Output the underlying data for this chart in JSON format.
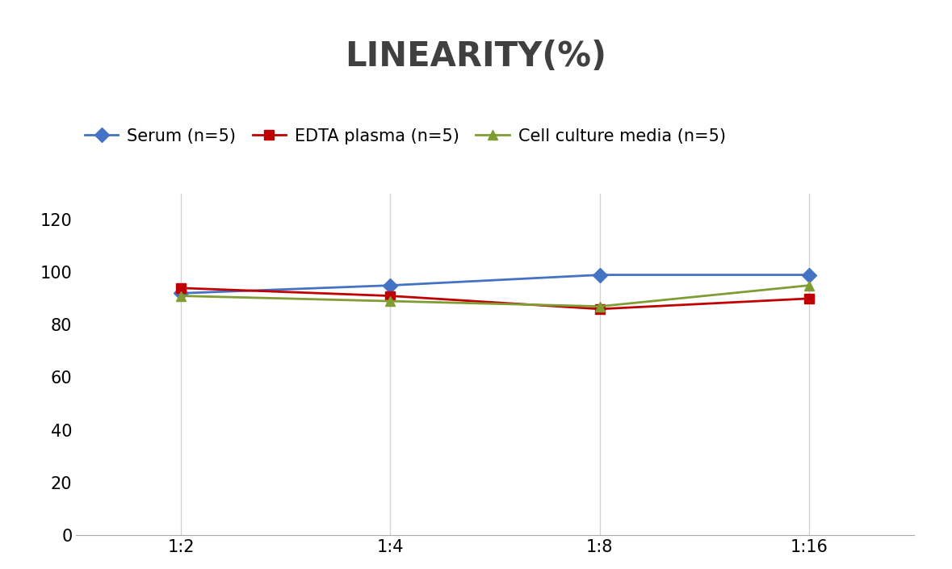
{
  "title": "LINEARITY(%)",
  "x_labels": [
    "1:2",
    "1:4",
    "1:8",
    "1:16"
  ],
  "x_positions": [
    0,
    1,
    2,
    3
  ],
  "series": [
    {
      "label": "Serum (n=5)",
      "values": [
        92,
        95,
        99,
        99
      ],
      "color": "#4472C4",
      "marker": "D",
      "markersize": 9,
      "linewidth": 2
    },
    {
      "label": "EDTA plasma (n=5)",
      "values": [
        94,
        91,
        86,
        90
      ],
      "color": "#C00000",
      "marker": "s",
      "markersize": 8,
      "linewidth": 2
    },
    {
      "label": "Cell culture media (n=5)",
      "values": [
        91,
        89,
        87,
        95
      ],
      "color": "#7F9D33",
      "marker": "^",
      "markersize": 9,
      "linewidth": 2
    }
  ],
  "ylim": [
    0,
    130
  ],
  "yticks": [
    0,
    20,
    40,
    60,
    80,
    100,
    120
  ],
  "background_color": "#FFFFFF",
  "grid_color": "#D3D3D3",
  "title_fontsize": 30,
  "legend_fontsize": 15,
  "tick_fontsize": 15,
  "title_color": "#404040"
}
